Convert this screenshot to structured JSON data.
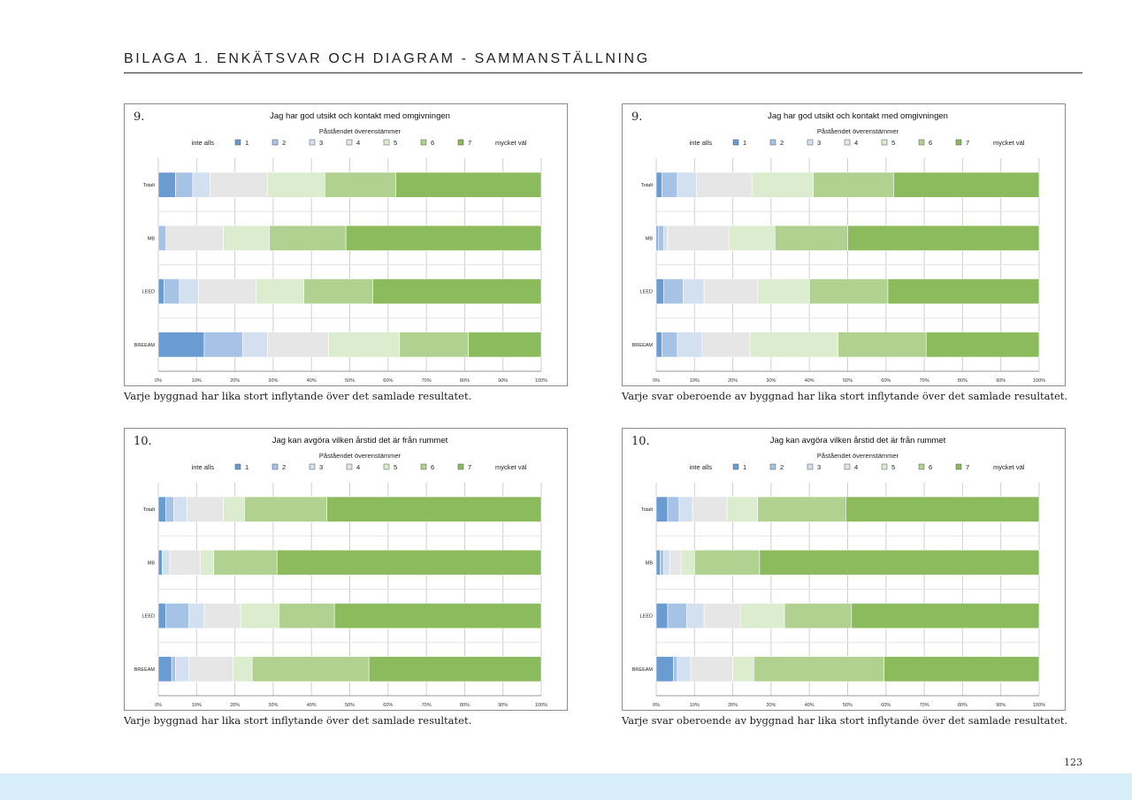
{
  "header": {
    "title": "BILAGA 1. ENKÄTSVAR OCH DIAGRAM - SAMMANSTÄLLNING"
  },
  "page_number": "123",
  "colors": {
    "s1": "#6a9bd1",
    "s2": "#a6c3e6",
    "s3": "#d3e0ef",
    "s4": "#e6e6e6",
    "s5": "#dceccf",
    "s6": "#b1d191",
    "s7": "#8cbb5e"
  },
  "chart_data": [
    {
      "type": "bar",
      "stacked": "horizontal-100%",
      "number": "9.",
      "title": "Jag har god utsikt och kontakt med omgivningen",
      "subtitle": "Påståendet överenstämmer",
      "legend_left": "inte alls",
      "legend_right": "mycket väl",
      "legend": [
        "1",
        "2",
        "3",
        "4",
        "5",
        "6",
        "7"
      ],
      "categories": [
        "Totalt",
        "MB",
        "LEED",
        "BREEAM"
      ],
      "xticks": [
        "0%",
        "10%",
        "20%",
        "30%",
        "40%",
        "50%",
        "60%",
        "70%",
        "80%",
        "90%",
        "100%"
      ],
      "xlim": [
        0,
        100
      ],
      "grid": true,
      "series": [
        {
          "name": "1",
          "values": [
            4.5,
            0,
            1.5,
            12
          ]
        },
        {
          "name": "2",
          "values": [
            4.5,
            2,
            4,
            10
          ]
        },
        {
          "name": "3",
          "values": [
            4.5,
            0,
            5,
            6.5
          ]
        },
        {
          "name": "4",
          "values": [
            15,
            15,
            15,
            16
          ]
        },
        {
          "name": "5",
          "values": [
            15,
            12,
            12.5,
            18.5
          ]
        },
        {
          "name": "6",
          "values": [
            18.5,
            20,
            18,
            18
          ]
        },
        {
          "name": "7",
          "values": [
            38,
            51,
            44,
            19
          ]
        }
      ],
      "caption": "Varje byggnad har lika stort inflytande över det samlade resultatet."
    },
    {
      "type": "bar",
      "stacked": "horizontal-100%",
      "number": "9.",
      "title": "Jag har god utsikt och kontakt med omgivningen",
      "subtitle": "Påståendet överenstämmer",
      "legend_left": "inte alls",
      "legend_right": "mycket väl",
      "legend": [
        "1",
        "2",
        "3",
        "4",
        "5",
        "6",
        "7"
      ],
      "categories": [
        "Totalt",
        "MB",
        "LEED",
        "BREEAM"
      ],
      "xticks": [
        "0%",
        "10%",
        "20%",
        "30%",
        "40%",
        "50%",
        "60%",
        "70%",
        "80%",
        "90%",
        "100%"
      ],
      "xlim": [
        0,
        100
      ],
      "grid": true,
      "series": [
        {
          "name": "1",
          "values": [
            1.5,
            0.5,
            2,
            1.5
          ]
        },
        {
          "name": "2",
          "values": [
            4,
            1.5,
            5,
            4
          ]
        },
        {
          "name": "3",
          "values": [
            5,
            1,
            5.5,
            6.5
          ]
        },
        {
          "name": "4",
          "values": [
            14.5,
            16,
            14,
            12.5
          ]
        },
        {
          "name": "5",
          "values": [
            16,
            12,
            13.5,
            23
          ]
        },
        {
          "name": "6",
          "values": [
            21,
            19,
            20.5,
            23
          ]
        },
        {
          "name": "7",
          "values": [
            38,
            50,
            39.5,
            29.5
          ]
        }
      ],
      "caption": "Varje svar oberoende av byggnad har lika stort inflytande över det samlade resultatet."
    },
    {
      "type": "bar",
      "stacked": "horizontal-100%",
      "number": "10.",
      "title": "Jag kan avgöra vilken årstid det är från rummet",
      "subtitle": "Påståendet överenstämmer",
      "legend_left": "inte alls",
      "legend_right": "mycket väl",
      "legend": [
        "1",
        "2",
        "3",
        "4",
        "5",
        "6",
        "7"
      ],
      "categories": [
        "Totalt",
        "MB",
        "LEED",
        "BREEAM"
      ],
      "xticks": [
        "0%",
        "10%",
        "20%",
        "30%",
        "40%",
        "50%",
        "60%",
        "70%",
        "80%",
        "90%",
        "100%"
      ],
      "xlim": [
        0,
        100
      ],
      "grid": true,
      "series": [
        {
          "name": "1",
          "values": [
            2,
            1,
            2,
            3.5
          ]
        },
        {
          "name": "2",
          "values": [
            2,
            0,
            6,
            1
          ]
        },
        {
          "name": "3",
          "values": [
            3.5,
            2,
            4,
            3.5
          ]
        },
        {
          "name": "4",
          "values": [
            9.5,
            8,
            9.5,
            11.5
          ]
        },
        {
          "name": "5",
          "values": [
            5.5,
            3.5,
            10,
            5
          ]
        },
        {
          "name": "6",
          "values": [
            21.5,
            16.5,
            14.5,
            30.5
          ]
        },
        {
          "name": "7",
          "values": [
            56,
            69,
            54,
            45
          ]
        }
      ],
      "caption": "Varje byggnad har lika stort inflytande över det samlade resultatet."
    },
    {
      "type": "bar",
      "stacked": "horizontal-100%",
      "number": "10.",
      "title": "Jag kan avgöra vilken årstid det är från rummet",
      "subtitle": "Påståendet överenstämmer",
      "legend_left": "inte alls",
      "legend_right": "mycket väl",
      "legend": [
        "1",
        "2",
        "3",
        "4",
        "5",
        "6",
        "7"
      ],
      "categories": [
        "Totalt",
        "MB",
        "LEED",
        "BREEAM"
      ],
      "xticks": [
        "0%",
        "10%",
        "20%",
        "30%",
        "40%",
        "50%",
        "60%",
        "70%",
        "80%",
        "90%",
        "100%"
      ],
      "xlim": [
        0,
        100
      ],
      "grid": true,
      "series": [
        {
          "name": "1",
          "values": [
            3,
            1,
            3,
            4.5
          ]
        },
        {
          "name": "2",
          "values": [
            3,
            1,
            5,
            1
          ]
        },
        {
          "name": "3",
          "values": [
            3.5,
            1.5,
            4.5,
            3.5
          ]
        },
        {
          "name": "4",
          "values": [
            9,
            3,
            9.5,
            11
          ]
        },
        {
          "name": "5",
          "values": [
            8,
            3.5,
            11.5,
            5.5
          ]
        },
        {
          "name": "6",
          "values": [
            23,
            17,
            17.5,
            34
          ]
        },
        {
          "name": "7",
          "values": [
            50.5,
            73,
            49,
            40.5
          ]
        }
      ],
      "caption": "Varje svar oberoende av byggnad har lika stort inflytande över det samlade resultatet."
    }
  ]
}
